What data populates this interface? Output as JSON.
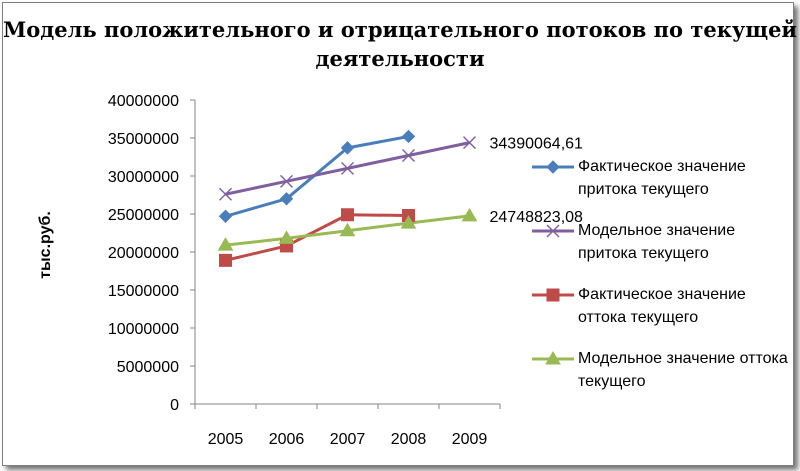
{
  "chart_data": {
    "type": "line",
    "title": "Модель положительного и отрицательного потоков по текущей деятельности",
    "ylabel": "тыс.руб.",
    "xlabel": "",
    "ylim": [
      0,
      40000000
    ],
    "yticks": [
      0,
      5000000,
      10000000,
      15000000,
      20000000,
      25000000,
      30000000,
      35000000,
      40000000
    ],
    "categories": [
      "2005",
      "2006",
      "2007",
      "2008",
      "2009"
    ],
    "grid": false,
    "legend_position": "right",
    "series": [
      {
        "name": "Фактическое значение притока текущего",
        "color": "#4a7ebb",
        "marker": "diamond",
        "values": [
          24700000,
          27000000,
          33700000,
          35200000,
          null
        ]
      },
      {
        "name": "Модельное значение притока текущего",
        "color": "#7f5f9f",
        "marker": "x",
        "values": [
          27600000,
          29300000,
          31000000,
          32700000,
          34390064.61
        ]
      },
      {
        "name": "Фактическое значение оттока текущего",
        "color": "#be4b48",
        "marker": "square",
        "values": [
          18900000,
          20800000,
          24900000,
          24800000,
          null
        ]
      },
      {
        "name": "Модельное значение оттока текущего",
        "color": "#98b954",
        "marker": "triangle",
        "values": [
          20900000,
          21800000,
          22800000,
          23800000,
          24748823.08
        ]
      }
    ],
    "data_labels": [
      {
        "series": 1,
        "index": 4,
        "text": "34390064,61"
      },
      {
        "series": 3,
        "index": 4,
        "text": "24748823,08"
      }
    ]
  }
}
